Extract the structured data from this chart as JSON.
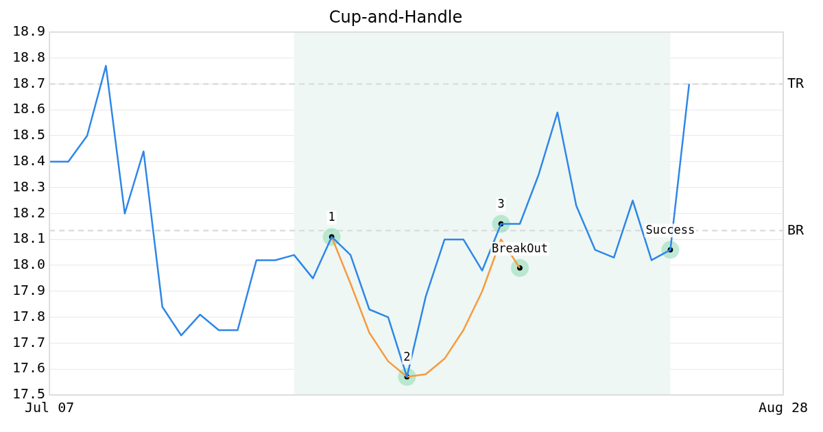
{
  "chart_data": {
    "type": "line",
    "title": "Cup-and-Handle",
    "categories": [
      "Jul 07",
      null,
      null,
      null,
      null,
      null,
      null,
      null,
      null,
      null,
      null,
      null,
      null,
      null,
      null,
      null,
      null,
      null,
      null,
      null,
      null,
      null,
      null,
      null,
      null,
      null,
      null,
      null,
      null,
      null,
      null,
      null,
      null,
      null,
      null,
      null,
      null,
      null,
      null,
      "Aug 28"
    ],
    "ylim": [
      17.5,
      18.9
    ],
    "yticks": [
      17.5,
      17.6,
      17.7,
      17.8,
      17.9,
      {
        "value": 18,
        "label": "18.0"
      },
      18.1,
      18.2,
      18.3,
      18.4,
      18.5,
      18.6,
      18.7,
      18.8,
      18.9
    ],
    "grid": "y",
    "legend": false,
    "series": [
      {
        "color": "#2e86e8",
        "values": [
          18.4,
          18.4,
          18.5,
          18.77,
          18.2,
          18.44,
          17.84,
          17.73,
          17.81,
          17.75,
          17.75,
          18.02,
          18.02,
          18.04,
          17.95,
          18.11,
          18.04,
          17.83,
          17.8,
          17.57,
          17.88,
          18.1,
          18.1,
          17.98,
          18.16,
          18.16,
          18.35,
          18.59,
          18.23,
          18.06,
          18.03,
          18.25,
          18.02,
          18.06,
          18.7,
          null,
          null,
          null,
          null,
          null
        ]
      },
      {
        "color": "#f79a3e",
        "values": [
          null,
          null,
          null,
          null,
          null,
          null,
          null,
          null,
          null,
          null,
          null,
          null,
          null,
          null,
          null,
          18.11,
          17.93,
          17.74,
          17.63,
          17.57,
          17.58,
          17.64,
          17.75,
          17.9,
          18.1,
          17.99,
          null,
          null,
          null,
          null,
          null,
          null,
          null,
          null,
          null,
          null,
          null,
          null,
          null,
          null
        ]
      },
      {
        "type": "scatter",
        "color": "#000000",
        "marker": "circle",
        "values": [
          null,
          null,
          null,
          null,
          null,
          null,
          null,
          null,
          null,
          null,
          null,
          null,
          null,
          null,
          null,
          18.11,
          null,
          null,
          null,
          17.57,
          null,
          null,
          null,
          null,
          18.16,
          17.99,
          null,
          null,
          null,
          null,
          null,
          null,
          null,
          18.06,
          null,
          null,
          null,
          null,
          null,
          null
        ]
      }
    ],
    "annotations": [
      "1",
      "2",
      "3",
      "BreakOut",
      "Success"
    ],
    "ref_lines": [
      {
        "axis": "y",
        "value": 18.7,
        "label": "TR",
        "color": "#dddddd",
        "line_style": "dashed"
      },
      {
        "axis": "y",
        "value": 18.134,
        "label": "BR",
        "color": "#dddddd",
        "line_style": "dashed"
      }
    ]
  }
}
